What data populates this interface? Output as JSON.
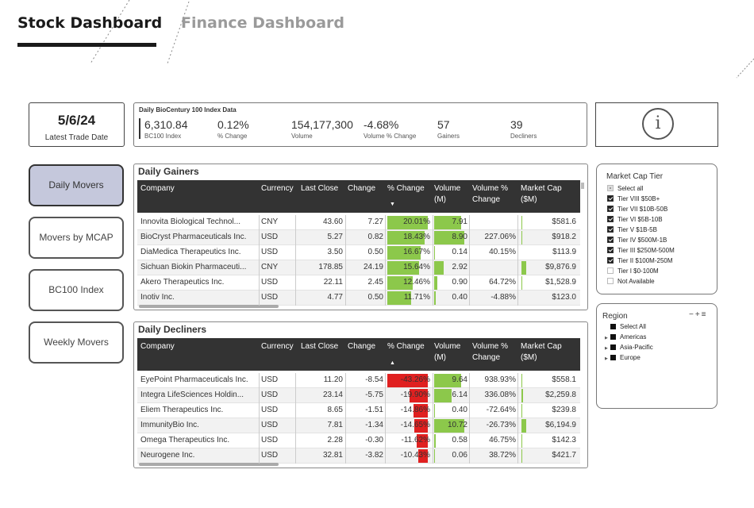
{
  "header": {
    "tabs": [
      {
        "label": "Stock Dashboard",
        "active": true
      },
      {
        "label": "Finance Dashboard",
        "active": false
      }
    ]
  },
  "latest_trade": {
    "value": "5/6/24",
    "label": "Latest Trade Date"
  },
  "index_card": {
    "title": "Daily BioCentury 100 Index Data",
    "stats": [
      {
        "value": "6,310.84",
        "label": "BC100 Index"
      },
      {
        "value": "0.12%",
        "label": "% Change"
      },
      {
        "value": "154,177,300",
        "label": "Volume"
      },
      {
        "value": "-4.68%",
        "label": "Volume % Change"
      },
      {
        "value": "57",
        "label": "Gainers"
      },
      {
        "value": "39",
        "label": "Decliners"
      }
    ]
  },
  "info_button": {
    "icon": "info-icon",
    "glyph": "i"
  },
  "nav": [
    {
      "label": "Daily Movers",
      "active": true
    },
    {
      "label": "Movers by MCAP",
      "active": false
    },
    {
      "label": "BC100 Index",
      "active": false
    },
    {
      "label": "Weekly Movers",
      "active": false
    }
  ],
  "columns": [
    "Company",
    "Currency",
    "Last Close",
    "Change",
    "% Change",
    "Volume (M)",
    "Volume % Change",
    "Market Cap ($M)"
  ],
  "gainers": {
    "title": "Daily Gainers",
    "rows": [
      {
        "company": "Innovita Biological Technol...",
        "currency": "CNY",
        "last_close": "43.60",
        "change": "7.27",
        "pct_change": "20.01%",
        "pct_value": 20.01,
        "volume": "7.91",
        "volume_value": 7.91,
        "vol_pct": "",
        "market_cap": "$581.6",
        "mcap_value": 581.6
      },
      {
        "company": "BioCryst Pharmaceuticals Inc.",
        "currency": "USD",
        "last_close": "5.27",
        "change": "0.82",
        "pct_change": "18.43%",
        "pct_value": 18.43,
        "volume": "8.90",
        "volume_value": 8.9,
        "vol_pct": "227.06%",
        "market_cap": "$918.2",
        "mcap_value": 918.2
      },
      {
        "company": "DiaMedica Therapeutics Inc.",
        "currency": "USD",
        "last_close": "3.50",
        "change": "0.50",
        "pct_change": "16.67%",
        "pct_value": 16.67,
        "volume": "0.14",
        "volume_value": 0.14,
        "vol_pct": "40.15%",
        "market_cap": "$113.9",
        "mcap_value": 113.9
      },
      {
        "company": "Sichuan Biokin Pharmaceuti...",
        "currency": "CNY",
        "last_close": "178.85",
        "change": "24.19",
        "pct_change": "15.64%",
        "pct_value": 15.64,
        "volume": "2.92",
        "volume_value": 2.92,
        "vol_pct": "",
        "market_cap": "$9,876.9",
        "mcap_value": 9876.9
      },
      {
        "company": "Akero Therapeutics Inc.",
        "currency": "USD",
        "last_close": "22.11",
        "change": "2.45",
        "pct_change": "12.46%",
        "pct_value": 12.46,
        "volume": "0.90",
        "volume_value": 0.9,
        "vol_pct": "64.72%",
        "market_cap": "$1,528.9",
        "mcap_value": 1528.9
      },
      {
        "company": "Inotiv Inc.",
        "currency": "USD",
        "last_close": "4.77",
        "change": "0.50",
        "pct_change": "11.71%",
        "pct_value": 11.71,
        "volume": "0.40",
        "volume_value": 0.4,
        "vol_pct": "-4.88%",
        "market_cap": "$123.0",
        "mcap_value": 123.0
      }
    ]
  },
  "decliners": {
    "title": "Daily Decliners",
    "rows": [
      {
        "company": "EyePoint Pharmaceuticals Inc.",
        "currency": "USD",
        "last_close": "11.20",
        "change": "-8.54",
        "pct_change": "-43.26%",
        "pct_value": -43.26,
        "volume": "9.64",
        "volume_value": 9.64,
        "vol_pct": "938.93%",
        "market_cap": "$558.1",
        "mcap_value": 558.1
      },
      {
        "company": "Integra LifeSciences Holdin...",
        "currency": "USD",
        "last_close": "23.14",
        "change": "-5.75",
        "pct_change": "-19.90%",
        "pct_value": -19.9,
        "volume": "6.14",
        "volume_value": 6.14,
        "vol_pct": "336.08%",
        "market_cap": "$2,259.8",
        "mcap_value": 2259.8
      },
      {
        "company": "Eliem Therapeutics Inc.",
        "currency": "USD",
        "last_close": "8.65",
        "change": "-1.51",
        "pct_change": "-14.86%",
        "pct_value": -14.86,
        "volume": "0.40",
        "volume_value": 0.4,
        "vol_pct": "-72.64%",
        "market_cap": "$239.8",
        "mcap_value": 239.8
      },
      {
        "company": "ImmunityBio Inc.",
        "currency": "USD",
        "last_close": "7.81",
        "change": "-1.34",
        "pct_change": "-14.65%",
        "pct_value": -14.65,
        "volume": "10.72",
        "volume_value": 10.72,
        "vol_pct": "-26.73%",
        "market_cap": "$6,194.9",
        "mcap_value": 6194.9
      },
      {
        "company": "Omega Therapeutics Inc.",
        "currency": "USD",
        "last_close": "2.28",
        "change": "-0.30",
        "pct_change": "-11.62%",
        "pct_value": -11.62,
        "volume": "0.58",
        "volume_value": 0.58,
        "vol_pct": "46.75%",
        "market_cap": "$142.3",
        "mcap_value": 142.3
      },
      {
        "company": "Neurogene Inc.",
        "currency": "USD",
        "last_close": "32.81",
        "change": "-3.82",
        "pct_change": "-10.43%",
        "pct_value": -10.43,
        "volume": "0.06",
        "volume_value": 0.06,
        "vol_pct": "38.72%",
        "market_cap": "$421.7",
        "mcap_value": 421.7
      }
    ]
  },
  "market_cap_slicer": {
    "title": "Market Cap Tier",
    "items": [
      {
        "label": "Select all",
        "state": "partial"
      },
      {
        "label": "Tier VIII $50B+",
        "state": "on"
      },
      {
        "label": "Tier VII $10B-50B",
        "state": "on"
      },
      {
        "label": "Tier VI $5B-10B",
        "state": "on"
      },
      {
        "label": "Tier V $1B-5B",
        "state": "on"
      },
      {
        "label": "Tier IV $500M-1B",
        "state": "on"
      },
      {
        "label": "Tier III $250M-500M",
        "state": "on"
      },
      {
        "label": "Tier II $100M-250M",
        "state": "on"
      },
      {
        "label": "Tier I $0-100M",
        "state": "off"
      },
      {
        "label": "Not Available",
        "state": "off"
      }
    ]
  },
  "region_slicer": {
    "title": "Region",
    "tools": "−+≡",
    "items": [
      {
        "label": "Select All",
        "expandable": false
      },
      {
        "label": "Americas",
        "expandable": true
      },
      {
        "label": "Asia-Pacific",
        "expandable": true
      },
      {
        "label": "Europe",
        "expandable": true
      }
    ]
  },
  "colors": {
    "gain": "#8cc84b",
    "decline": "#e02020",
    "header_bg": "#333333",
    "nav_active": "#c5c8dc"
  }
}
